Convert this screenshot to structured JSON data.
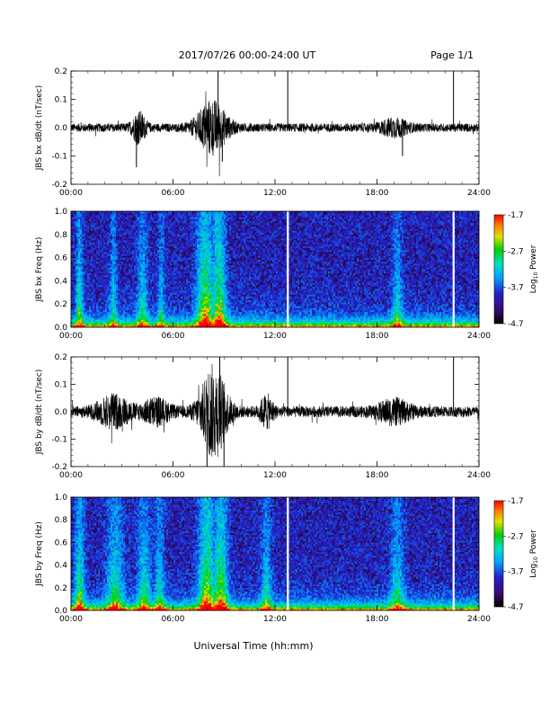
{
  "header": {
    "date_range": "2017/07/26  00:00-24:00 UT",
    "page": "Page 1/1"
  },
  "x_axis": {
    "label": "Universal Time (hh:mm)",
    "ticks": [
      "00:00",
      "06:00",
      "12:00",
      "18:00",
      "24:00"
    ],
    "range_hours": [
      0,
      24
    ]
  },
  "colorbar": {
    "label_main": "Log",
    "label_sub": "10",
    "label_tail": " Power",
    "ticks": [
      "-1.7",
      "-2.7",
      "-3.7",
      "-4.7"
    ],
    "range": [
      -4.7,
      -1.7
    ]
  },
  "chart_data": [
    {
      "type": "line",
      "ylabel": "JBS bx dB/dt (nT/sec)",
      "ylim": [
        -0.2,
        0.2
      ],
      "yticks": [
        "0.2",
        "0.1",
        "0.0",
        "-0.1",
        "-0.2"
      ],
      "xlim": [
        0,
        24
      ],
      "noise_amplitude": 0.015,
      "bursts": [
        {
          "center": 4.0,
          "width": 0.4,
          "amp": 0.05
        },
        {
          "center": 8.3,
          "width": 0.9,
          "amp": 0.09
        },
        {
          "center": 19.0,
          "width": 0.8,
          "amp": 0.025
        }
      ],
      "spikes": [
        {
          "x": 8.65,
          "y": 0.2
        },
        {
          "x": 12.75,
          "y": 0.2
        },
        {
          "x": 22.5,
          "y": 0.2
        },
        {
          "x": 3.85,
          "y": -0.14
        },
        {
          "x": 8.9,
          "y": -0.12
        },
        {
          "x": 19.5,
          "y": -0.1
        }
      ]
    },
    {
      "type": "heatmap",
      "ylabel": "JBS bx Freq (Hz)",
      "ylim": [
        0,
        1.0
      ],
      "yticks": [
        "1.0",
        "0.8",
        "0.6",
        "0.4",
        "0.2",
        "0.0"
      ],
      "xlim": [
        0,
        24
      ],
      "gaps": [
        12.75,
        22.5
      ],
      "activity": [
        {
          "center": 0.5,
          "width": 0.2,
          "strength": 0.7
        },
        {
          "center": 2.5,
          "width": 0.2,
          "strength": 0.5
        },
        {
          "center": 4.2,
          "width": 0.3,
          "strength": 0.55
        },
        {
          "center": 5.3,
          "width": 0.2,
          "strength": 0.45
        },
        {
          "center": 7.9,
          "width": 0.5,
          "strength": 1.0
        },
        {
          "center": 8.7,
          "width": 0.4,
          "strength": 1.0
        },
        {
          "center": 19.2,
          "width": 0.3,
          "strength": 0.5
        }
      ]
    },
    {
      "type": "line",
      "ylabel": "JBS by dB/dt (nT/sec)",
      "ylim": [
        -0.2,
        0.2
      ],
      "yticks": [
        "0.2",
        "0.1",
        "0.0",
        "-0.1",
        "-0.2"
      ],
      "xlim": [
        0,
        24
      ],
      "noise_amplitude": 0.02,
      "bursts": [
        {
          "center": 2.5,
          "width": 1.0,
          "amp": 0.05
        },
        {
          "center": 5.0,
          "width": 0.8,
          "amp": 0.04
        },
        {
          "center": 8.4,
          "width": 0.8,
          "amp": 0.16
        },
        {
          "center": 11.5,
          "width": 0.4,
          "amp": 0.05
        },
        {
          "center": 19.0,
          "width": 1.0,
          "amp": 0.035
        }
      ],
      "spikes": [
        {
          "x": 8.75,
          "y": 0.2
        },
        {
          "x": 12.75,
          "y": 0.2
        },
        {
          "x": 22.5,
          "y": 0.2
        },
        {
          "x": 8.0,
          "y": -0.2
        },
        {
          "x": 9.0,
          "y": -0.2
        }
      ]
    },
    {
      "type": "heatmap",
      "ylabel": "JBS by Freq (Hz)",
      "ylim": [
        0,
        1.0
      ],
      "yticks": [
        "1.0",
        "0.8",
        "0.6",
        "0.4",
        "0.2",
        "0.0"
      ],
      "xlim": [
        0,
        24
      ],
      "gaps": [
        12.75,
        22.5
      ],
      "activity": [
        {
          "center": 0.5,
          "width": 0.3,
          "strength": 0.75
        },
        {
          "center": 2.6,
          "width": 0.5,
          "strength": 0.65
        },
        {
          "center": 4.3,
          "width": 0.4,
          "strength": 0.6
        },
        {
          "center": 5.2,
          "width": 0.3,
          "strength": 0.55
        },
        {
          "center": 8.0,
          "width": 0.5,
          "strength": 1.0
        },
        {
          "center": 8.8,
          "width": 0.4,
          "strength": 1.0
        },
        {
          "center": 11.5,
          "width": 0.3,
          "strength": 0.55
        },
        {
          "center": 19.2,
          "width": 0.4,
          "strength": 0.55
        }
      ]
    }
  ]
}
